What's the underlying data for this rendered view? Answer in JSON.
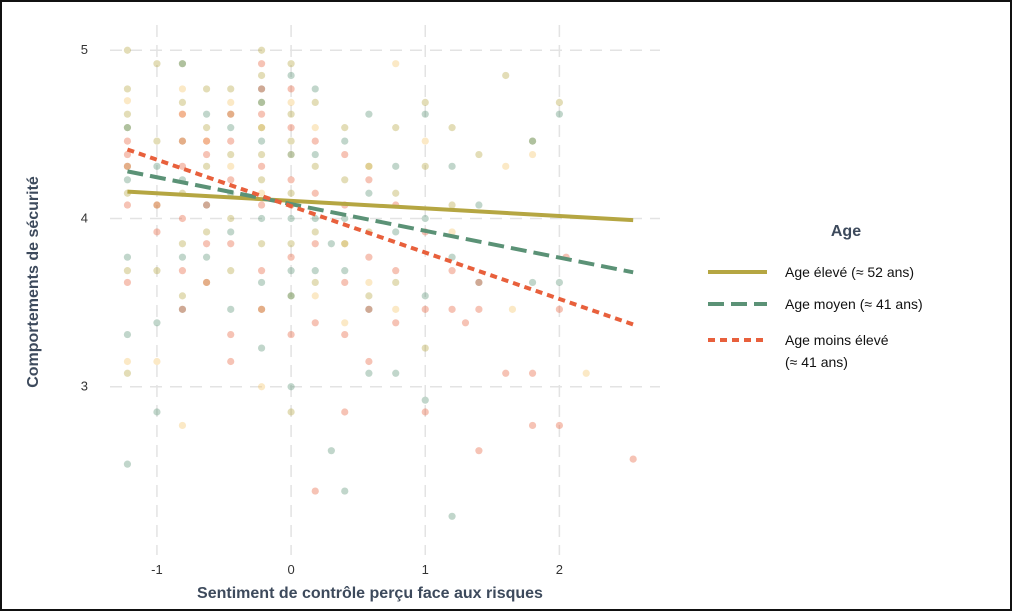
{
  "chart_data": {
    "type": "scatter",
    "xlabel": "Sentiment de contrôle perçu face aux risques",
    "ylabel": "Comportements de sécurité",
    "xlim": [
      -1.35,
      2.75
    ],
    "ylim": [
      2.0,
      5.15
    ],
    "x_ticks": [
      -1,
      0,
      1,
      2
    ],
    "x_tick_labels": [
      "-1",
      "0",
      "1",
      "2"
    ],
    "y_ticks": [
      3,
      4,
      5
    ],
    "y_tick_labels": [
      "3",
      "4",
      "5"
    ],
    "grid": true,
    "legend_title": "Age",
    "legend_position": "right",
    "series": [
      {
        "name": "Age élevé (≈ 52 ans)",
        "color": "#b5a642",
        "line_style": "solid",
        "line": {
          "x": [
            -1.22,
            2.55
          ],
          "y": [
            4.16,
            3.99
          ]
        },
        "points": [
          [
            -1.22,
            5.0
          ],
          [
            -1.22,
            4.77
          ],
          [
            -1.22,
            4.62
          ],
          [
            -1.22,
            4.54
          ],
          [
            -1.22,
            4.31
          ],
          [
            -1.22,
            4.15
          ],
          [
            -1.22,
            3.69
          ],
          [
            -1.22,
            3.08
          ],
          [
            -1.0,
            4.92
          ],
          [
            -1.0,
            4.46
          ],
          [
            -1.0,
            4.08
          ],
          [
            -1.0,
            3.69
          ],
          [
            -0.81,
            4.92
          ],
          [
            -0.81,
            4.69
          ],
          [
            -0.81,
            4.46
          ],
          [
            -0.81,
            4.15
          ],
          [
            -0.81,
            3.85
          ],
          [
            -0.81,
            3.54
          ],
          [
            -0.63,
            4.77
          ],
          [
            -0.63,
            4.54
          ],
          [
            -0.63,
            4.31
          ],
          [
            -0.63,
            3.92
          ],
          [
            -0.63,
            3.62
          ],
          [
            -0.45,
            4.77
          ],
          [
            -0.45,
            4.62
          ],
          [
            -0.45,
            4.38
          ],
          [
            -0.45,
            4.0
          ],
          [
            -0.45,
            3.69
          ],
          [
            -0.22,
            5.0
          ],
          [
            -0.22,
            4.85
          ],
          [
            -0.22,
            4.69
          ],
          [
            -0.22,
            4.54
          ],
          [
            -0.22,
            4.38
          ],
          [
            -0.22,
            4.23
          ],
          [
            -0.22,
            3.85
          ],
          [
            -0.22,
            3.46
          ],
          [
            0.0,
            4.92
          ],
          [
            0.0,
            4.62
          ],
          [
            0.0,
            4.46
          ],
          [
            0.0,
            4.15
          ],
          [
            0.0,
            3.85
          ],
          [
            0.0,
            3.54
          ],
          [
            0.0,
            2.85
          ],
          [
            0.18,
            4.69
          ],
          [
            0.18,
            4.31
          ],
          [
            0.18,
            3.92
          ],
          [
            0.18,
            3.62
          ],
          [
            0.4,
            4.54
          ],
          [
            0.4,
            4.23
          ],
          [
            0.4,
            3.85
          ],
          [
            0.58,
            4.31
          ],
          [
            0.58,
            3.92
          ],
          [
            0.58,
            3.54
          ],
          [
            0.78,
            4.54
          ],
          [
            0.78,
            4.15
          ],
          [
            0.78,
            3.62
          ],
          [
            1.0,
            4.69
          ],
          [
            1.0,
            4.31
          ],
          [
            1.0,
            3.23
          ],
          [
            1.2,
            4.54
          ],
          [
            1.2,
            4.08
          ],
          [
            1.4,
            4.38
          ],
          [
            1.6,
            4.85
          ],
          [
            1.8,
            4.46
          ],
          [
            2.0,
            4.69
          ]
        ]
      },
      {
        "name": "Age moyen (≈ 41 ans)",
        "color": "#5b9276",
        "line_style": "dashed",
        "line": {
          "x": [
            -1.22,
            2.55
          ],
          "y": [
            4.28,
            3.68
          ]
        },
        "points": [
          [
            -1.22,
            4.54
          ],
          [
            -1.22,
            4.23
          ],
          [
            -1.22,
            3.77
          ],
          [
            -1.22,
            3.31
          ],
          [
            -1.22,
            2.54
          ],
          [
            -1.0,
            4.31
          ],
          [
            -1.0,
            3.38
          ],
          [
            -1.0,
            2.85
          ],
          [
            -0.81,
            4.92
          ],
          [
            -0.81,
            4.23
          ],
          [
            -0.81,
            3.77
          ],
          [
            -0.81,
            3.46
          ],
          [
            -0.63,
            4.62
          ],
          [
            -0.63,
            4.08
          ],
          [
            -0.63,
            3.77
          ],
          [
            -0.45,
            4.54
          ],
          [
            -0.45,
            4.15
          ],
          [
            -0.45,
            3.92
          ],
          [
            -0.45,
            3.46
          ],
          [
            -0.22,
            4.77
          ],
          [
            -0.22,
            4.69
          ],
          [
            -0.22,
            4.46
          ],
          [
            -0.22,
            4.0
          ],
          [
            -0.22,
            3.62
          ],
          [
            -0.22,
            3.23
          ],
          [
            0.0,
            4.85
          ],
          [
            0.0,
            4.38
          ],
          [
            0.0,
            4.0
          ],
          [
            0.0,
            3.69
          ],
          [
            0.0,
            3.54
          ],
          [
            0.0,
            3.0
          ],
          [
            0.18,
            4.77
          ],
          [
            0.18,
            4.38
          ],
          [
            0.18,
            4.0
          ],
          [
            0.18,
            3.69
          ],
          [
            0.3,
            3.85
          ],
          [
            0.3,
            2.62
          ],
          [
            0.4,
            4.46
          ],
          [
            0.4,
            4.0
          ],
          [
            0.4,
            3.69
          ],
          [
            0.4,
            2.38
          ],
          [
            0.58,
            4.62
          ],
          [
            0.58,
            4.15
          ],
          [
            0.58,
            3.46
          ],
          [
            0.58,
            3.08
          ],
          [
            0.78,
            4.31
          ],
          [
            0.78,
            3.92
          ],
          [
            0.78,
            3.08
          ],
          [
            1.0,
            4.62
          ],
          [
            1.0,
            4.0
          ],
          [
            1.0,
            3.54
          ],
          [
            1.0,
            2.92
          ],
          [
            1.2,
            4.31
          ],
          [
            1.2,
            3.77
          ],
          [
            1.2,
            2.23
          ],
          [
            1.4,
            4.08
          ],
          [
            1.4,
            3.62
          ],
          [
            1.8,
            4.46
          ],
          [
            1.8,
            3.62
          ],
          [
            2.0,
            4.62
          ],
          [
            2.0,
            3.62
          ]
        ]
      },
      {
        "name": "Age moins élevé (≈ 41 ans)",
        "color": "#e8603c",
        "line_style": "dotted",
        "line": {
          "x": [
            -1.22,
            2.55
          ],
          "y": [
            4.41,
            3.37
          ]
        },
        "points": [
          [
            -1.22,
            4.46
          ],
          [
            -1.22,
            4.38
          ],
          [
            -1.22,
            4.31
          ],
          [
            -1.22,
            4.08
          ],
          [
            -1.22,
            3.62
          ],
          [
            -1.0,
            4.08
          ],
          [
            -1.0,
            3.92
          ],
          [
            -0.81,
            4.62
          ],
          [
            -0.81,
            4.46
          ],
          [
            -0.81,
            4.31
          ],
          [
            -0.81,
            4.0
          ],
          [
            -0.81,
            3.69
          ],
          [
            -0.81,
            3.46
          ],
          [
            -0.63,
            4.46
          ],
          [
            -0.63,
            4.38
          ],
          [
            -0.63,
            4.08
          ],
          [
            -0.63,
            3.85
          ],
          [
            -0.63,
            3.62
          ],
          [
            -0.45,
            4.62
          ],
          [
            -0.45,
            4.46
          ],
          [
            -0.45,
            4.23
          ],
          [
            -0.45,
            3.85
          ],
          [
            -0.45,
            3.31
          ],
          [
            -0.45,
            3.15
          ],
          [
            -0.22,
            4.92
          ],
          [
            -0.22,
            4.77
          ],
          [
            -0.22,
            4.62
          ],
          [
            -0.22,
            4.31
          ],
          [
            -0.22,
            4.08
          ],
          [
            -0.22,
            3.69
          ],
          [
            -0.22,
            3.46
          ],
          [
            0.0,
            4.77
          ],
          [
            0.0,
            4.54
          ],
          [
            0.0,
            4.23
          ],
          [
            0.0,
            4.08
          ],
          [
            0.0,
            3.77
          ],
          [
            0.0,
            3.31
          ],
          [
            0.18,
            4.46
          ],
          [
            0.18,
            4.15
          ],
          [
            0.18,
            3.85
          ],
          [
            0.18,
            3.38
          ],
          [
            0.18,
            2.38
          ],
          [
            0.4,
            4.38
          ],
          [
            0.4,
            4.08
          ],
          [
            0.4,
            3.62
          ],
          [
            0.4,
            3.31
          ],
          [
            0.4,
            2.85
          ],
          [
            0.58,
            4.23
          ],
          [
            0.58,
            3.77
          ],
          [
            0.58,
            3.46
          ],
          [
            0.58,
            3.15
          ],
          [
            0.78,
            4.08
          ],
          [
            0.78,
            3.69
          ],
          [
            0.78,
            3.38
          ],
          [
            1.0,
            3.92
          ],
          [
            1.0,
            3.46
          ],
          [
            1.0,
            2.85
          ],
          [
            1.2,
            3.69
          ],
          [
            1.2,
            3.46
          ],
          [
            1.3,
            3.38
          ],
          [
            1.4,
            3.62
          ],
          [
            1.4,
            3.46
          ],
          [
            1.4,
            2.62
          ],
          [
            1.6,
            3.08
          ],
          [
            1.8,
            3.08
          ],
          [
            1.8,
            2.77
          ],
          [
            2.0,
            3.46
          ],
          [
            2.0,
            2.77
          ],
          [
            2.55,
            2.57
          ],
          [
            2.05,
            3.77
          ]
        ]
      }
    ],
    "extra_points": {
      "color": "#f5c469",
      "points": [
        [
          -1.22,
          4.7
        ],
        [
          -1.22,
          3.15
        ],
        [
          -1.0,
          3.15
        ],
        [
          -0.81,
          4.77
        ],
        [
          -0.81,
          4.62
        ],
        [
          -0.81,
          2.77
        ],
        [
          -0.63,
          4.46
        ],
        [
          -0.45,
          4.69
        ],
        [
          -0.45,
          4.31
        ],
        [
          -0.22,
          4.54
        ],
        [
          -0.22,
          4.15
        ],
        [
          -0.22,
          3.0
        ],
        [
          0.0,
          4.69
        ],
        [
          0.0,
          4.38
        ],
        [
          0.18,
          4.54
        ],
        [
          0.18,
          3.54
        ],
        [
          0.4,
          3.85
        ],
        [
          0.4,
          3.38
        ],
        [
          0.58,
          4.31
        ],
        [
          0.58,
          3.62
        ],
        [
          0.78,
          4.92
        ],
        [
          0.78,
          3.46
        ],
        [
          1.0,
          4.46
        ],
        [
          1.2,
          3.92
        ],
        [
          1.6,
          4.31
        ],
        [
          1.8,
          4.38
        ],
        [
          2.2,
          3.08
        ],
        [
          1.65,
          3.46
        ]
      ]
    }
  }
}
